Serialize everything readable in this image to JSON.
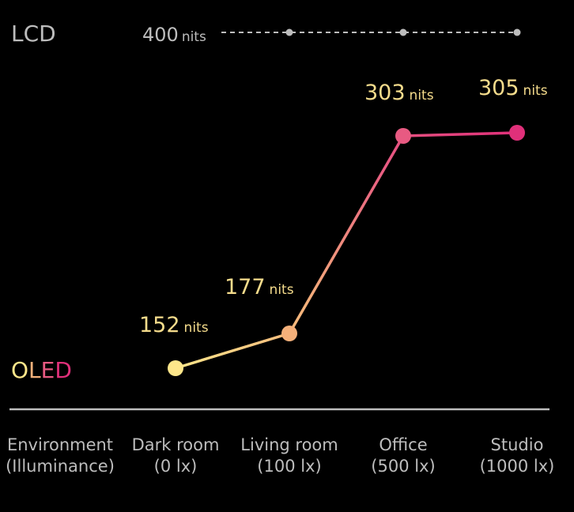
{
  "chart_data": {
    "type": "line",
    "categories": [
      {
        "line1": "Dark room",
        "line2": "(0 lx)"
      },
      {
        "line1": "Living room",
        "line2": "(100 lx)"
      },
      {
        "line1": "Office",
        "line2": "(500 lx)"
      },
      {
        "line1": "Studio",
        "line2": "(1000 lx)"
      }
    ],
    "x_axis_title": {
      "line1": "Environment",
      "line2": "(Illuminance)"
    },
    "unit": "nits",
    "series": [
      {
        "name": "LCD",
        "values": [
          400,
          400,
          400,
          400
        ],
        "data_labels": [
          "400",
          null,
          null,
          null
        ],
        "style": "dashed",
        "color": "#bdbdbd"
      },
      {
        "name": "OLED",
        "values": [
          152,
          177,
          303,
          305
        ],
        "data_labels": [
          "152",
          "177",
          "303",
          "305"
        ],
        "style": "solid-gradient",
        "point_colors": [
          "#fde68a",
          "#f4b07a",
          "#e85a82",
          "#e0307a"
        ]
      }
    ],
    "name_colors": {
      "OLED": [
        "#fde68a",
        "#f4b07a",
        "#e85a82",
        "#e0307a"
      ],
      "LCD": "#bdbdbd"
    },
    "label_color": "#f5dc8c",
    "axis_text_color": "#bdbdbd",
    "axis_line_color": "#bdbdbd",
    "background": "#000000"
  }
}
